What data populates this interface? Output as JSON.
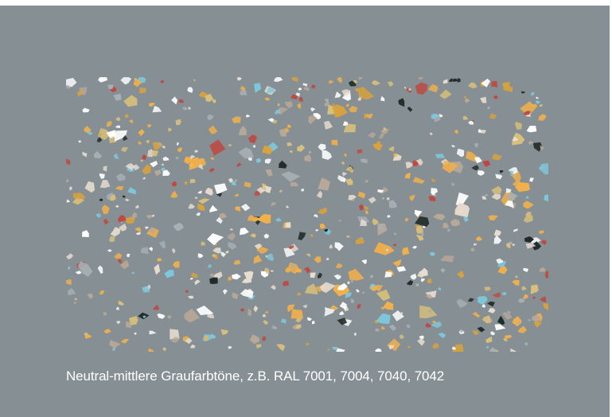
{
  "caption": "Neutral-mittlere Graufarbtöne, z.B. RAL 7001, 7004, 7040, 7042",
  "colors": {
    "page_background": "#858f94",
    "swatch_base": "#868f94",
    "caption_text": "#ffffff",
    "chips": [
      "#f2b04a",
      "#d8c07a",
      "#7ec8dc",
      "#ffffff",
      "#e8ddd0",
      "#b8a898",
      "#c0473f",
      "#1e2a26",
      "#a7b0b4",
      "#d9a23c"
    ]
  }
}
